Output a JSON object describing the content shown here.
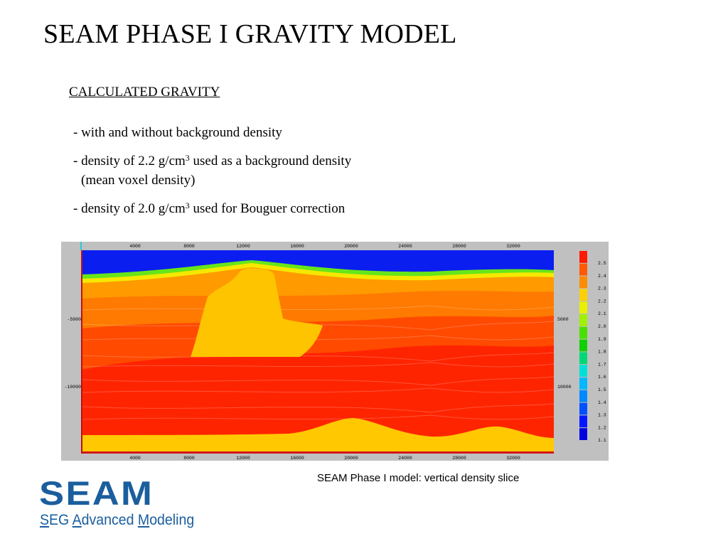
{
  "slide": {
    "title": "SEAM PHASE I GRAVITY MODEL",
    "section_heading": "CALCULATED GRAVITY",
    "bullets": {
      "b1": "- with and without background density",
      "b2_pre": "- density of 2.2 g/cm",
      "b2_sup": "3",
      "b2_post": " used as a background density",
      "b2_cont": "(mean voxel density)",
      "b3_pre": "- density of 2.0 g/cm",
      "b3_sup": "3",
      "b3_post": " used for Bouguer correction"
    },
    "caption": "SEAM Phase I model: vertical density slice"
  },
  "density_slice": {
    "x_ticks": [
      "4000",
      "8000",
      "12000",
      "16000",
      "20000",
      "24000",
      "28000",
      "32000"
    ],
    "depth_ticks": [
      "-5000",
      "-10000"
    ],
    "colorbar_labels": [
      "2.5",
      "2.4",
      "2.3",
      "2.2",
      "2.1",
      "2.0",
      "1.9",
      "1.8",
      "1.7",
      "1.6",
      "1.5",
      "1.4",
      "1.3",
      "1.2",
      "1.1"
    ],
    "colorbar_colors": [
      "#ff1a00",
      "#ff5a00",
      "#ff8c00",
      "#ffd000",
      "#e8f000",
      "#a0f000",
      "#48e000",
      "#10d000",
      "#00d878",
      "#00e0d8",
      "#00b8ff",
      "#0088ff",
      "#0050ff",
      "#0018ff",
      "#0000e0"
    ],
    "colors": {
      "water": "#0a1ef0",
      "seafloor_green": "#66e61a",
      "shallow_yellow": "#f5e800",
      "orange_light": "#ff9a00",
      "orange": "#ff7a00",
      "orange_red": "#ff4a00",
      "red": "#ff2400",
      "salt": "#ffc400",
      "deep_yellow": "#ffc800",
      "basement": "#d01818"
    }
  },
  "logo": {
    "word": "SEAM",
    "sub_s": "S",
    "sub_eg": "EG ",
    "sub_a": "A",
    "sub_dvanced": "dvanced ",
    "sub_m": "M",
    "sub_odeling": "odeling"
  }
}
